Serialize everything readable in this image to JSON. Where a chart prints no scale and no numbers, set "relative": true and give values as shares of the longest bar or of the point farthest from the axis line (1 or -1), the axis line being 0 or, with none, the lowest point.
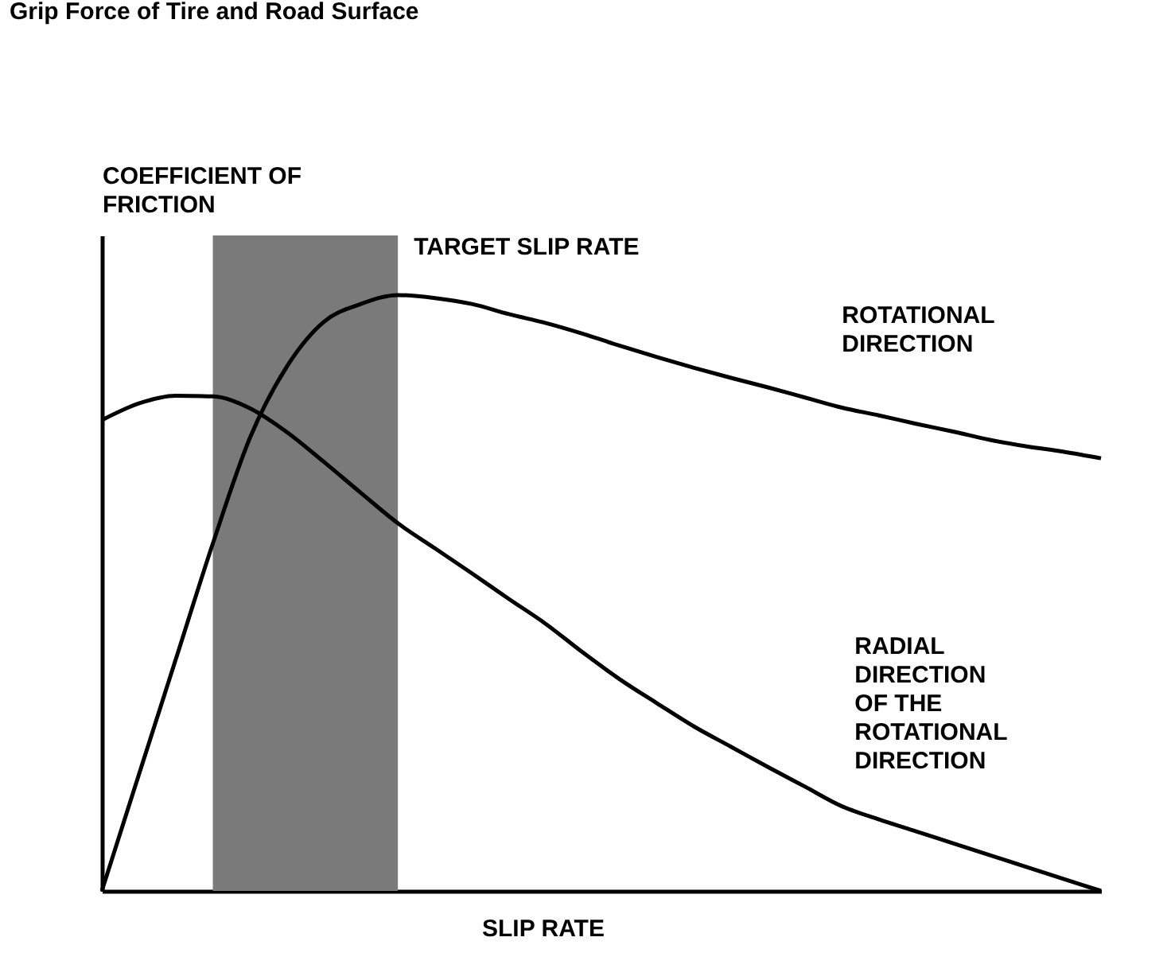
{
  "chart_data": {
    "type": "line",
    "title": "Grip Force of Tire and Road Surface",
    "xlabel": "SLIP RATE",
    "ylabel": "COEFFICIENT OF\nFRICTION",
    "relative": true,
    "categories": [
      null,
      null,
      null,
      null,
      null,
      null,
      null,
      null,
      null,
      null,
      null,
      null,
      null,
      null,
      null,
      null,
      null,
      null,
      null,
      null,
      null,
      null,
      null,
      null,
      null,
      null,
      null,
      null
    ],
    "annotations": [
      "TARGET SLIP RATE"
    ],
    "series": [
      {
        "name": "ROTATIONAL\nDIRECTION",
        "color": "#000000",
        "values": [
          0,
          0.195,
          0.389,
          0.583,
          0.76,
          0.88,
          0.955,
          0.985,
          1,
          0.995,
          0.985,
          0.968,
          0.953,
          0.935,
          0.915,
          0.896,
          0.878,
          0.861,
          0.845,
          0.828,
          0.811,
          0.798,
          0.784,
          0.771,
          0.757,
          0.746,
          0.737,
          0.726
        ]
      },
      {
        "name": "RADIAL\nDIRECTION\nOF THE\nROTATIONAL\nDIRECTION",
        "color": "#000000",
        "values": [
          0.79,
          0.818,
          0.831,
          0.83,
          0.81,
          0.77,
          0.72,
          0.668,
          0.617,
          0.575,
          0.533,
          0.49,
          0.448,
          0.4,
          0.355,
          0.315,
          0.276,
          0.242,
          0.208,
          0.175,
          0.142,
          0.12,
          0.1,
          0.08,
          0.06,
          0.04,
          0.02,
          0
        ]
      }
    ]
  }
}
